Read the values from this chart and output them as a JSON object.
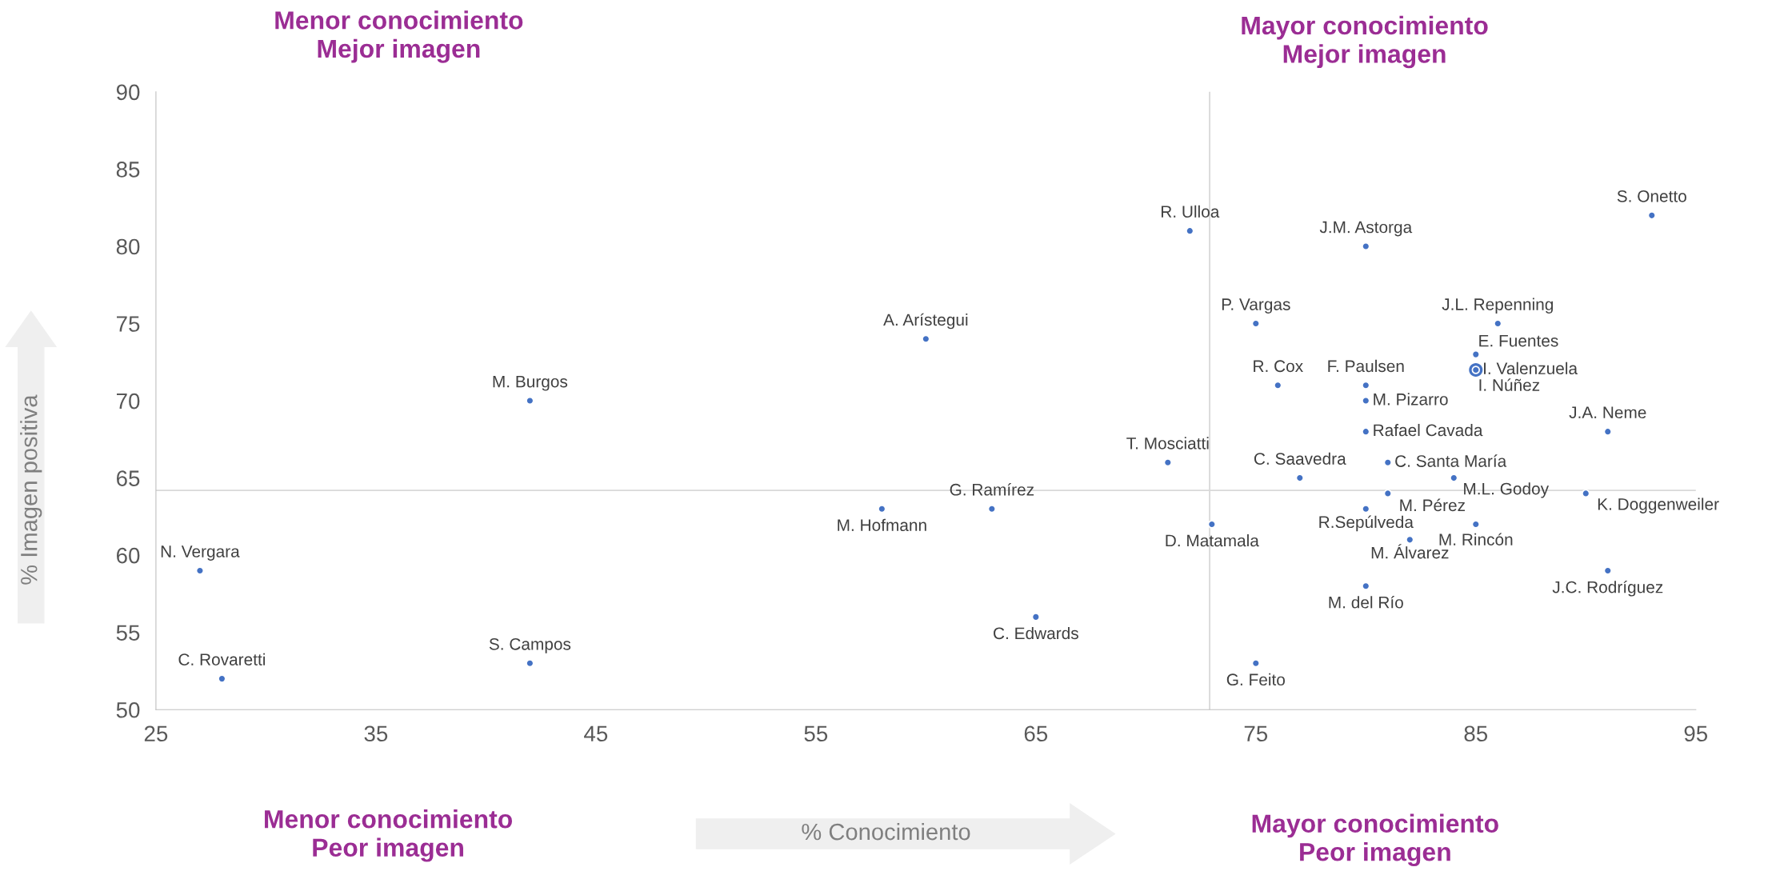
{
  "chart_data": {
    "type": "scatter",
    "xlabel": "% Conocimiento",
    "ylabel": "% Imagen positiva",
    "annotations": [
      "Menor conocimiento\nMejor imagen",
      "Mayor conocimiento\nMejor imagen",
      "Menor conocimiento\nPeor imagen",
      "Mayor conocimiento\nPeor imagen"
    ],
    "xlim": [
      25,
      95
    ],
    "xticks": [
      25,
      35,
      45,
      55,
      65,
      75,
      85,
      95
    ],
    "ylim": [
      50,
      90
    ],
    "yticks": [
      50,
      55,
      60,
      65,
      70,
      75,
      80,
      85,
      90
    ],
    "grid": false,
    "legend": false,
    "marker": "circle",
    "ref_lines": [
      {
        "axis": "x",
        "value": 72.9,
        "color": "#d9d9d9"
      },
      {
        "axis": "y",
        "value": 64.2,
        "color": "#d9d9d9"
      }
    ],
    "series": [
      {
        "name": "N. Vergara",
        "color": "#4472c4",
        "x": [
          27
        ],
        "values": [
          59
        ]
      },
      {
        "name": "C. Rovaretti",
        "color": "#4472c4",
        "x": [
          28
        ],
        "values": [
          52
        ]
      },
      {
        "name": "S. Campos",
        "color": "#4472c4",
        "x": [
          42
        ],
        "values": [
          53
        ]
      },
      {
        "name": "M. Burgos",
        "color": "#4472c4",
        "x": [
          42
        ],
        "values": [
          70
        ]
      },
      {
        "name": "A. Arístegui",
        "color": "#4472c4",
        "x": [
          60
        ],
        "values": [
          74
        ]
      },
      {
        "name": "M. Hofmann",
        "color": "#4472c4",
        "x": [
          58
        ],
        "values": [
          63
        ]
      },
      {
        "name": "G. Ramírez",
        "color": "#4472c4",
        "x": [
          63
        ],
        "values": [
          63
        ]
      },
      {
        "name": "C. Edwards",
        "color": "#4472c4",
        "x": [
          65
        ],
        "values": [
          56
        ]
      },
      {
        "name": "T. Mosciatti",
        "color": "#4472c4",
        "x": [
          71
        ],
        "values": [
          66
        ]
      },
      {
        "name": "R. Ulloa",
        "color": "#4472c4",
        "x": [
          72
        ],
        "values": [
          81
        ]
      },
      {
        "name": "D. Matamala",
        "color": "#4472c4",
        "x": [
          73
        ],
        "values": [
          62
        ]
      },
      {
        "name": "P. Vargas",
        "color": "#4472c4",
        "x": [
          75
        ],
        "values": [
          75
        ]
      },
      {
        "name": "G. Feito",
        "color": "#4472c4",
        "x": [
          75
        ],
        "values": [
          53
        ]
      },
      {
        "name": "R. Cox",
        "color": "#4472c4",
        "x": [
          76
        ],
        "values": [
          71
        ]
      },
      {
        "name": "C. Saavedra",
        "color": "#4472c4",
        "x": [
          77
        ],
        "values": [
          65
        ]
      },
      {
        "name": "J.M. Astorga",
        "color": "#4472c4",
        "x": [
          80
        ],
        "values": [
          80
        ]
      },
      {
        "name": "F. Paulsen",
        "color": "#4472c4",
        "x": [
          80
        ],
        "values": [
          71
        ]
      },
      {
        "name": "M. Pizarro",
        "color": "#4472c4",
        "x": [
          80
        ],
        "values": [
          70
        ]
      },
      {
        "name": "Rafael Cavada",
        "color": "#4472c4",
        "x": [
          80
        ],
        "values": [
          68
        ]
      },
      {
        "name": "R.Sepúlveda",
        "color": "#4472c4",
        "x": [
          80
        ],
        "values": [
          63
        ]
      },
      {
        "name": "M. del Río",
        "color": "#4472c4",
        "x": [
          80
        ],
        "values": [
          58
        ]
      },
      {
        "name": "C. Santa María",
        "color": "#4472c4",
        "x": [
          81
        ],
        "values": [
          66
        ]
      },
      {
        "name": "M. Pérez",
        "color": "#4472c4",
        "x": [
          81
        ],
        "values": [
          64
        ]
      },
      {
        "name": "M. Álvarez",
        "color": "#4472c4",
        "x": [
          82
        ],
        "values": [
          61
        ]
      },
      {
        "name": "M.L. Godoy",
        "color": "#4472c4",
        "x": [
          84
        ],
        "values": [
          65
        ]
      },
      {
        "name": "E. Fuentes",
        "color": "#4472c4",
        "x": [
          85
        ],
        "values": [
          73
        ]
      },
      {
        "name": "I. Valenzuela",
        "color": "#4472c4",
        "x": [
          85
        ],
        "values": [
          72
        ]
      },
      {
        "name": "I. Núñez",
        "color": "#4472c4",
        "x": [
          85
        ],
        "values": [
          72
        ]
      },
      {
        "name": "M. Rincón",
        "color": "#4472c4",
        "x": [
          85
        ],
        "values": [
          62
        ]
      },
      {
        "name": "J.L. Repenning",
        "color": "#4472c4",
        "x": [
          86
        ],
        "values": [
          75
        ]
      },
      {
        "name": "K. Doggenweiler",
        "color": "#4472c4",
        "x": [
          90
        ],
        "values": [
          64
        ]
      },
      {
        "name": "J.A. Neme",
        "color": "#4472c4",
        "x": [
          91
        ],
        "values": [
          68
        ]
      },
      {
        "name": "J.C. Rodríguez",
        "color": "#4472c4",
        "x": [
          91
        ],
        "values": [
          59
        ]
      },
      {
        "name": "S. Onetto",
        "color": "#4472c4",
        "x": [
          93
        ],
        "values": [
          82
        ]
      }
    ]
  }
}
